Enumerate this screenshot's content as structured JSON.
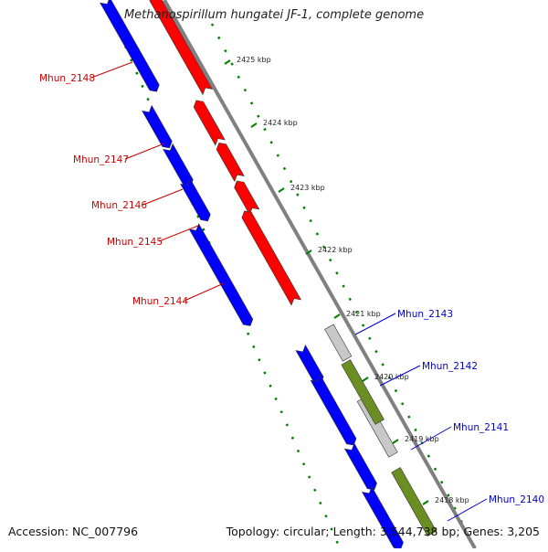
{
  "title": "Methanospirillum hungatei JF-1, complete genome",
  "accession": "Accession: NC_007796",
  "summary": "Topology: circular; Length: 3,544,738 bp; Genes: 3,205",
  "colors": {
    "reverse_strand_cds": "#ff0000",
    "forward_strand_cds": "#0000ff",
    "grey_feature": "#c8c8c8",
    "olive_feature": "#6b8e23",
    "backbone": "#808080",
    "ticks": "#008000",
    "left_labels": "#cc0000",
    "right_labels": "#0000cc"
  },
  "kbp_ticks": [
    {
      "label": "2425 kbp"
    },
    {
      "label": "2424 kbp"
    },
    {
      "label": "2423 kbp"
    },
    {
      "label": "2422 kbp"
    },
    {
      "label": "2421 kbp"
    },
    {
      "label": "2420 kbp"
    },
    {
      "label": "2419 kbp"
    },
    {
      "label": "2418 kbp"
    }
  ],
  "genes_left": [
    {
      "name": "Mhun_2148"
    },
    {
      "name": "Mhun_2147"
    },
    {
      "name": "Mhun_2146"
    },
    {
      "name": "Mhun_2145"
    },
    {
      "name": "Mhun_2144"
    }
  ],
  "genes_right": [
    {
      "name": "Mhun_2143"
    },
    {
      "name": "Mhun_2142"
    },
    {
      "name": "Mhun_2141"
    },
    {
      "name": "Mhun_2140"
    }
  ]
}
